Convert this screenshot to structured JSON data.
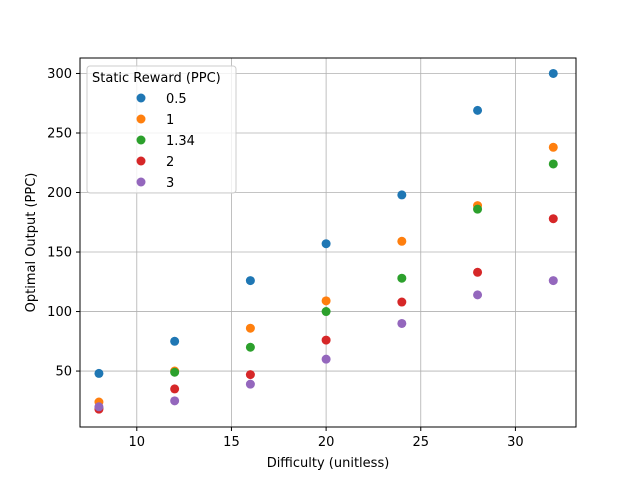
{
  "chart_data": {
    "type": "scatter",
    "title": "",
    "xlabel": "Difficulty (unitless)",
    "ylabel": "Optimal Output (PPC)",
    "xlim": [
      7.0,
      33.2
    ],
    "ylim": [
      3,
      313
    ],
    "xticks": [
      10,
      15,
      20,
      25,
      30
    ],
    "yticks": [
      50,
      100,
      150,
      200,
      250,
      300
    ],
    "grid": true,
    "legend": {
      "title": "Static Reward (PPC)",
      "placement": "top-left"
    },
    "x": [
      8,
      12,
      16,
      20,
      24,
      28,
      32
    ],
    "series": [
      {
        "name": "0.5",
        "color": "#1f77b4",
        "values": [
          48,
          75,
          126,
          157,
          198,
          269,
          300
        ]
      },
      {
        "name": "1",
        "color": "#ff7f0e",
        "values": [
          24,
          50,
          86,
          109,
          159,
          189,
          238
        ]
      },
      {
        "name": "1.34",
        "color": "#2ca02c",
        "values": [
          19,
          49,
          70,
          100,
          128,
          186,
          224
        ]
      },
      {
        "name": "2",
        "color": "#d62728",
        "values": [
          18,
          35,
          47,
          76,
          108,
          133,
          178
        ]
      },
      {
        "name": "3",
        "color": "#9467bd",
        "values": [
          20,
          25,
          39,
          60,
          90,
          114,
          126
        ]
      }
    ]
  }
}
